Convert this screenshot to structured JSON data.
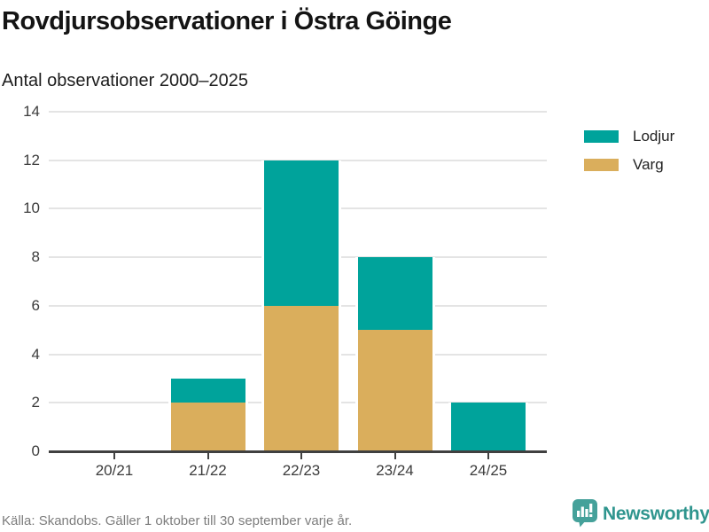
{
  "header": {
    "title": "Rovdjursobservationer i Östra Göinge",
    "subtitle": "Antal observationer 2000–2025"
  },
  "legend": {
    "items": [
      {
        "label": "Lodjur",
        "color": "#00A39B"
      },
      {
        "label": "Varg",
        "color": "#DAAE5C"
      }
    ]
  },
  "chart_data": {
    "type": "bar",
    "stacked": true,
    "title": "Rovdjursobservationer i Östra Göinge",
    "subtitle": "Antal observationer 2000–2025",
    "categories": [
      "20/21",
      "21/22",
      "22/23",
      "23/24",
      "24/25"
    ],
    "series": [
      {
        "name": "Varg",
        "color": "#DAAE5C",
        "values": [
          0,
          2,
          6,
          5,
          0
        ]
      },
      {
        "name": "Lodjur",
        "color": "#00A39B",
        "values": [
          0,
          1,
          6,
          3,
          2
        ]
      }
    ],
    "totals": [
      0,
      3,
      12,
      8,
      2
    ],
    "xlabel": "",
    "ylabel": "",
    "ylim": [
      0,
      14
    ],
    "yticks": [
      0,
      2,
      4,
      6,
      8,
      10,
      12,
      14
    ],
    "grid": true,
    "legend_position": "top-right"
  },
  "footer": {
    "source": "Källa: Skandobs. Gäller 1 oktober till 30 september varje år.",
    "brand": "Newsworthy",
    "brand_color": "#2F958E",
    "brand_icon_color": "#45A19A"
  }
}
